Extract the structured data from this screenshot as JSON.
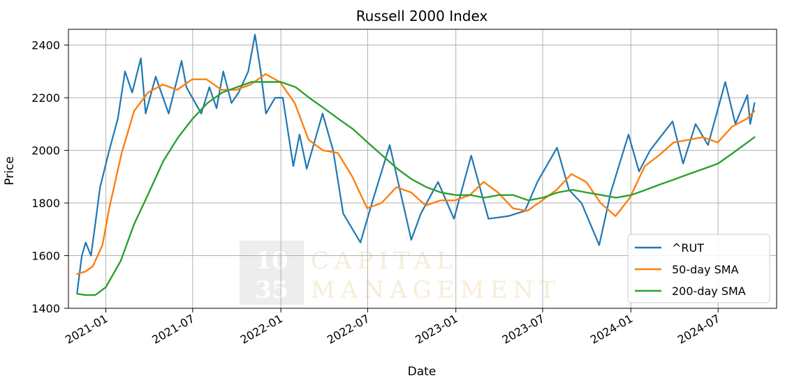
{
  "chart_data": {
    "type": "line",
    "title": "Russell 2000 Index",
    "xlabel": "Date",
    "ylabel": "Price",
    "xlim": [
      "2020-10-15",
      "2024-10-31"
    ],
    "ylim": [
      1400,
      2460
    ],
    "grid": true,
    "legend_position": "bottom-right",
    "x_ticks": [
      "2021-01",
      "2021-07",
      "2022-01",
      "2022-07",
      "2023-01",
      "2023-07",
      "2024-01",
      "2024-07"
    ],
    "y_ticks": [
      1400,
      1600,
      1800,
      2000,
      2200,
      2400
    ],
    "watermark": {
      "number_lines": [
        "10",
        "35"
      ],
      "text_lines": [
        "CAPITAL",
        "MANAGEMENT"
      ]
    },
    "series": [
      {
        "name": "^RUT",
        "color": "#1f77b4",
        "points": [
          [
            "2020-11-02",
            1460
          ],
          [
            "2020-11-12",
            1600
          ],
          [
            "2020-11-20",
            1650
          ],
          [
            "2020-12-01",
            1600
          ],
          [
            "2020-12-10",
            1720
          ],
          [
            "2020-12-20",
            1860
          ],
          [
            "2021-01-08",
            2000
          ],
          [
            "2021-01-26",
            2120
          ],
          [
            "2021-02-10",
            2300
          ],
          [
            "2021-02-25",
            2220
          ],
          [
            "2021-03-15",
            2350
          ],
          [
            "2021-03-25",
            2140
          ],
          [
            "2021-04-15",
            2280
          ],
          [
            "2021-05-12",
            2140
          ],
          [
            "2021-06-08",
            2340
          ],
          [
            "2021-06-18",
            2240
          ],
          [
            "2021-07-19",
            2140
          ],
          [
            "2021-08-05",
            2240
          ],
          [
            "2021-08-20",
            2160
          ],
          [
            "2021-09-03",
            2300
          ],
          [
            "2021-09-20",
            2180
          ],
          [
            "2021-10-05",
            2220
          ],
          [
            "2021-10-25",
            2300
          ],
          [
            "2021-11-08",
            2440
          ],
          [
            "2021-11-20",
            2300
          ],
          [
            "2021-12-01",
            2140
          ],
          [
            "2021-12-20",
            2200
          ],
          [
            "2022-01-05",
            2200
          ],
          [
            "2022-01-27",
            1940
          ],
          [
            "2022-02-09",
            2060
          ],
          [
            "2022-02-24",
            1930
          ],
          [
            "2022-03-29",
            2140
          ],
          [
            "2022-04-20",
            2000
          ],
          [
            "2022-05-11",
            1760
          ],
          [
            "2022-06-16",
            1650
          ],
          [
            "2022-07-10",
            1800
          ],
          [
            "2022-08-16",
            2020
          ],
          [
            "2022-09-30",
            1660
          ],
          [
            "2022-10-20",
            1760
          ],
          [
            "2022-11-25",
            1880
          ],
          [
            "2022-12-28",
            1740
          ],
          [
            "2023-02-02",
            1980
          ],
          [
            "2023-03-10",
            1740
          ],
          [
            "2023-04-20",
            1750
          ],
          [
            "2023-05-25",
            1770
          ],
          [
            "2023-06-20",
            1880
          ],
          [
            "2023-07-31",
            2010
          ],
          [
            "2023-08-25",
            1850
          ],
          [
            "2023-09-20",
            1800
          ],
          [
            "2023-10-27",
            1640
          ],
          [
            "2023-11-20",
            1840
          ],
          [
            "2023-12-27",
            2060
          ],
          [
            "2024-01-18",
            1920
          ],
          [
            "2024-02-10",
            2000
          ],
          [
            "2024-03-28",
            2110
          ],
          [
            "2024-04-19",
            1950
          ],
          [
            "2024-05-15",
            2100
          ],
          [
            "2024-06-10",
            2020
          ],
          [
            "2024-07-16",
            2260
          ],
          [
            "2024-08-06",
            2100
          ],
          [
            "2024-08-31",
            2210
          ],
          [
            "2024-09-06",
            2100
          ],
          [
            "2024-09-15",
            2180
          ]
        ]
      },
      {
        "name": "50-day SMA",
        "color": "#ff7f0e",
        "points": [
          [
            "2020-11-02",
            1530
          ],
          [
            "2020-11-20",
            1540
          ],
          [
            "2020-12-05",
            1560
          ],
          [
            "2020-12-25",
            1640
          ],
          [
            "2021-01-08",
            1780
          ],
          [
            "2021-02-03",
            1990
          ],
          [
            "2021-03-01",
            2150
          ],
          [
            "2021-03-30",
            2220
          ],
          [
            "2021-04-30",
            2250
          ],
          [
            "2021-05-30",
            2230
          ],
          [
            "2021-06-30",
            2270
          ],
          [
            "2021-07-30",
            2270
          ],
          [
            "2021-08-30",
            2230
          ],
          [
            "2021-09-30",
            2230
          ],
          [
            "2021-10-30",
            2250
          ],
          [
            "2021-11-30",
            2290
          ],
          [
            "2021-12-30",
            2260
          ],
          [
            "2022-01-30",
            2180
          ],
          [
            "2022-02-28",
            2040
          ],
          [
            "2022-03-30",
            2000
          ],
          [
            "2022-04-30",
            1990
          ],
          [
            "2022-05-30",
            1900
          ],
          [
            "2022-06-30",
            1780
          ],
          [
            "2022-07-30",
            1800
          ],
          [
            "2022-08-30",
            1860
          ],
          [
            "2022-09-30",
            1840
          ],
          [
            "2022-10-30",
            1790
          ],
          [
            "2022-11-30",
            1810
          ],
          [
            "2022-12-30",
            1810
          ],
          [
            "2023-01-30",
            1830
          ],
          [
            "2023-02-28",
            1880
          ],
          [
            "2023-03-30",
            1840
          ],
          [
            "2023-04-30",
            1780
          ],
          [
            "2023-05-30",
            1770
          ],
          [
            "2023-06-30",
            1810
          ],
          [
            "2023-07-30",
            1850
          ],
          [
            "2023-08-30",
            1910
          ],
          [
            "2023-09-30",
            1880
          ],
          [
            "2023-10-30",
            1800
          ],
          [
            "2023-11-30",
            1750
          ],
          [
            "2023-12-30",
            1820
          ],
          [
            "2024-01-30",
            1940
          ],
          [
            "2024-02-28",
            1980
          ],
          [
            "2024-03-30",
            2030
          ],
          [
            "2024-04-30",
            2040
          ],
          [
            "2024-05-30",
            2050
          ],
          [
            "2024-06-30",
            2030
          ],
          [
            "2024-07-30",
            2090
          ],
          [
            "2024-08-30",
            2120
          ],
          [
            "2024-09-15",
            2150
          ]
        ]
      },
      {
        "name": "200-day SMA",
        "color": "#2ca02c",
        "points": [
          [
            "2020-11-02",
            1455
          ],
          [
            "2020-11-20",
            1450
          ],
          [
            "2020-12-10",
            1450
          ],
          [
            "2021-01-01",
            1480
          ],
          [
            "2021-02-01",
            1580
          ],
          [
            "2021-03-01",
            1720
          ],
          [
            "2021-04-01",
            1840
          ],
          [
            "2021-05-01",
            1960
          ],
          [
            "2021-06-01",
            2050
          ],
          [
            "2021-07-01",
            2120
          ],
          [
            "2021-08-01",
            2180
          ],
          [
            "2021-09-01",
            2220
          ],
          [
            "2021-10-01",
            2240
          ],
          [
            "2021-11-01",
            2260
          ],
          [
            "2021-12-01",
            2260
          ],
          [
            "2022-01-01",
            2260
          ],
          [
            "2022-02-01",
            2240
          ],
          [
            "2022-03-01",
            2200
          ],
          [
            "2022-04-01",
            2160
          ],
          [
            "2022-05-01",
            2120
          ],
          [
            "2022-06-01",
            2080
          ],
          [
            "2022-07-01",
            2030
          ],
          [
            "2022-08-01",
            1980
          ],
          [
            "2022-09-01",
            1930
          ],
          [
            "2022-10-01",
            1890
          ],
          [
            "2022-11-01",
            1860
          ],
          [
            "2022-12-01",
            1840
          ],
          [
            "2023-01-01",
            1830
          ],
          [
            "2023-02-01",
            1830
          ],
          [
            "2023-03-01",
            1820
          ],
          [
            "2023-04-01",
            1830
          ],
          [
            "2023-05-01",
            1830
          ],
          [
            "2023-06-01",
            1810
          ],
          [
            "2023-07-01",
            1820
          ],
          [
            "2023-08-01",
            1840
          ],
          [
            "2023-09-01",
            1850
          ],
          [
            "2023-10-01",
            1840
          ],
          [
            "2023-11-01",
            1830
          ],
          [
            "2023-12-01",
            1820
          ],
          [
            "2024-01-01",
            1830
          ],
          [
            "2024-02-01",
            1850
          ],
          [
            "2024-03-01",
            1870
          ],
          [
            "2024-04-01",
            1890
          ],
          [
            "2024-05-01",
            1910
          ],
          [
            "2024-06-01",
            1930
          ],
          [
            "2024-07-01",
            1950
          ],
          [
            "2024-08-01",
            1990
          ],
          [
            "2024-09-15",
            2050
          ]
        ]
      }
    ]
  }
}
